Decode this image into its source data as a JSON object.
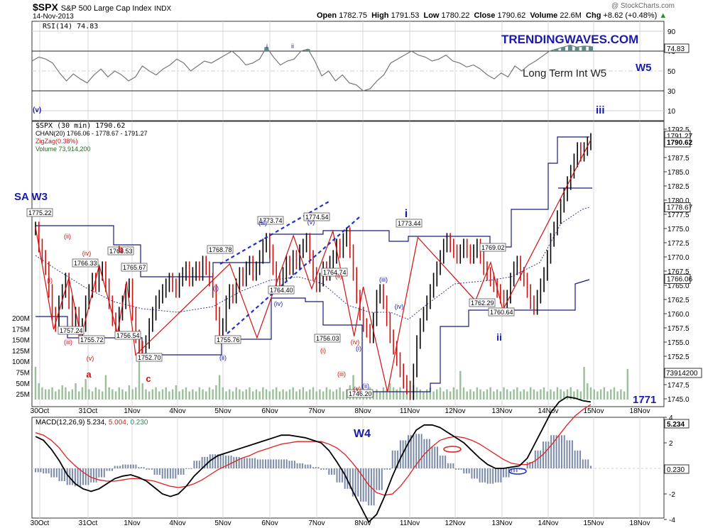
{
  "header": {
    "symbol": "$SPX",
    "name": "S&P 500 Large Cap Index",
    "exchange": "INDX",
    "date": "14-Nov-2013",
    "watermark": "@ StockCharts.com",
    "open_label": "Open",
    "open": "1782.75",
    "high_label": "High",
    "high": "1791.53",
    "low_label": "Low",
    "low": "1780.22",
    "close_label": "Close",
    "close": "1790.62",
    "volume_label": "Volume",
    "volume": "22.6M",
    "chg_label": "Chg",
    "chg": "+8.62 (+0.48%)",
    "up_icon": "triangle-up-icon"
  },
  "brand": {
    "text": "TRENDINGWAVES.COM",
    "color": "#1a1aa8"
  },
  "colors": {
    "wave_blue": "#1a1aa8",
    "wave_red": "#d01010",
    "price_up": "#000000",
    "price_down": "#cc1111",
    "channel": "#1a1a7a",
    "rsi_fill": "#5a8a8a",
    "volume": "#9abf9a",
    "macd_hist": "#7a8aa8"
  },
  "rsi": {
    "legend": "RSI(14) 74.83",
    "value_tag": "74.83",
    "ticks": [
      "90",
      "70",
      "50",
      "30",
      "10"
    ],
    "note_long_term": "Long Term Int W5",
    "label_w5": "W5",
    "label_v": "(v)",
    "label_iii": "iii",
    "small_i": "i",
    "small_ii": "ii",
    "values": [
      60,
      64,
      62,
      58,
      48,
      40,
      47,
      42,
      38,
      46,
      52,
      44,
      50,
      46,
      40,
      44,
      55,
      50,
      46,
      52,
      56,
      62,
      58,
      50,
      55,
      60,
      58,
      62,
      66,
      70,
      64,
      56,
      58,
      62,
      74,
      64,
      56,
      60,
      62,
      70,
      72,
      60,
      45,
      50,
      40,
      46,
      38,
      36,
      30,
      32,
      40,
      46,
      58,
      62,
      66,
      70,
      66,
      64,
      60,
      62,
      66,
      60,
      58,
      54,
      56,
      52,
      46,
      42,
      48,
      44,
      55,
      50,
      56,
      60,
      65,
      70,
      72,
      74,
      76,
      74,
      75,
      74.8
    ]
  },
  "price": {
    "legend": "$SPX (30 min) 1790.62",
    "legend_chan": "CHAN(20) 1766.06 - 1778.67 - 1791.27",
    "legend_zigzag": "ZigZag(0.38%)",
    "legend_volume": "Volume 73,914,200",
    "tag_close": "1790.62",
    "tag_upper": "1791.27",
    "tag_mid": "1778.67",
    "tag_lower": "1766.06",
    "tag_volume": "73914200",
    "y_ticks": [
      "1792.5",
      "1790.0",
      "1787.5",
      "1785.0",
      "1782.5",
      "1780.0",
      "1777.5",
      "1775.0",
      "1772.5",
      "1770.0",
      "1767.5",
      "1765.0",
      "1762.5",
      "1760.0",
      "1757.5",
      "1755.0",
      "1752.5",
      "1750.0",
      "1747.5",
      "1745.0"
    ],
    "vol_ticks": [
      "200M",
      "175M",
      "150M",
      "125M",
      "100M",
      "75M",
      "50M",
      "25M"
    ],
    "label_sa_w3": "SA W3",
    "label_1771": "1771",
    "zigzag": [
      [
        0,
        1775.22
      ],
      [
        6,
        1757.24
      ],
      [
        11,
        1766.33
      ],
      [
        15,
        1755.72
      ],
      [
        21,
        1768.53
      ],
      [
        27,
        1756.54
      ],
      [
        30,
        1765.67
      ],
      [
        33,
        1752.7
      ],
      [
        64,
        1768.78
      ],
      [
        73,
        1755.76
      ],
      [
        85,
        1773.74
      ],
      [
        91,
        1764.4
      ],
      [
        98,
        1774.54
      ],
      [
        105,
        1756.03
      ],
      [
        108,
        1764.74
      ],
      [
        116,
        1746.2
      ],
      [
        126,
        1773.44
      ],
      [
        145,
        1762.29
      ],
      [
        150,
        1769.02
      ],
      [
        154,
        1760.64
      ],
      [
        183,
        1790.62
      ]
    ],
    "bars": [
      1775,
      1772,
      1770,
      1768,
      1764,
      1760,
      1758,
      1762,
      1764,
      1766,
      1762,
      1758,
      1760,
      1756,
      1758,
      1762,
      1764,
      1766,
      1765,
      1767,
      1768,
      1765,
      1762,
      1759,
      1757,
      1760,
      1762,
      1764,
      1765,
      1760,
      1756,
      1754,
      1753,
      1755,
      1758,
      1760,
      1762,
      1763,
      1764,
      1765,
      1766,
      1765,
      1764,
      1766,
      1767,
      1768,
      1766,
      1767,
      1768,
      1767,
      1769,
      1768,
      1766,
      1764,
      1760,
      1757,
      1758,
      1762,
      1764,
      1763,
      1765,
      1767,
      1766,
      1768,
      1769,
      1767,
      1768,
      1770,
      1772,
      1773,
      1771,
      1768,
      1766,
      1765,
      1767,
      1769,
      1768,
      1770,
      1769,
      1771,
      1772,
      1773,
      1770,
      1767,
      1765,
      1766,
      1768,
      1767,
      1769,
      1770,
      1772,
      1771,
      1773,
      1774,
      1771,
      1767,
      1763,
      1760,
      1758,
      1757,
      1756,
      1759,
      1763,
      1764,
      1762,
      1759,
      1756,
      1754,
      1752,
      1750,
      1748,
      1747,
      1746,
      1750,
      1755,
      1758,
      1760,
      1762,
      1764,
      1766,
      1768,
      1770,
      1772,
      1773,
      1772,
      1771,
      1770,
      1771,
      1772,
      1771,
      1770,
      1771,
      1772,
      1770,
      1768,
      1767,
      1766,
      1765,
      1764,
      1763,
      1762,
      1763,
      1766,
      1768,
      1769,
      1767,
      1766,
      1764,
      1762,
      1761,
      1763,
      1765,
      1767,
      1770,
      1773,
      1775,
      1777,
      1779,
      1781,
      1783,
      1785,
      1787,
      1789,
      1788,
      1789,
      1790,
      1790.6
    ],
    "volume": [
      80,
      40,
      30,
      25,
      25,
      30,
      20,
      25,
      35,
      30,
      20,
      25,
      40,
      20,
      30,
      50,
      25,
      20,
      30,
      25,
      20,
      60,
      30,
      25,
      20,
      30,
      25,
      20,
      35,
      25,
      30,
      150,
      40,
      25,
      20,
      25,
      30,
      20,
      25,
      30,
      20,
      25,
      35,
      20,
      25,
      30,
      20,
      25,
      20,
      30,
      25,
      20,
      30,
      25,
      35,
      60,
      30,
      20,
      25,
      20,
      30,
      25,
      20,
      25,
      30,
      20,
      25,
      20,
      30,
      25,
      20,
      25,
      30,
      20,
      25,
      20,
      25,
      30,
      20,
      25,
      30,
      20,
      25,
      30,
      20,
      25,
      20,
      30,
      25,
      20,
      25,
      30,
      20,
      25,
      35,
      60,
      30,
      25,
      20,
      25,
      30,
      20,
      25,
      20,
      30,
      25,
      40,
      30,
      25,
      30,
      20,
      25,
      45,
      35,
      30,
      25,
      20,
      25,
      30,
      20,
      25,
      30,
      20,
      25,
      20,
      30,
      25,
      70,
      30,
      20,
      25,
      20,
      30,
      25,
      20,
      25,
      30,
      20,
      25,
      20,
      30,
      25,
      20,
      25,
      30,
      20,
      25,
      20,
      30,
      25,
      20,
      25,
      30,
      20,
      25,
      20,
      30,
      25,
      20,
      25,
      30,
      20,
      25,
      20,
      80,
      40,
      30,
      25,
      20,
      25,
      30,
      20,
      25,
      30,
      20,
      25,
      20,
      75
    ]
  },
  "wave_labels": [
    {
      "t": "i",
      "x": 572,
      "y": 306,
      "c": "blue",
      "s": 16,
      "b": true
    },
    {
      "t": "ii",
      "x": 703,
      "y": 480,
      "c": "blue",
      "s": 14,
      "b": true
    },
    {
      "t": "(i)",
      "x": 304,
      "y": 409,
      "c": "blue",
      "s": 9
    },
    {
      "t": "(ii)",
      "x": 314,
      "y": 507,
      "c": "blue",
      "s": 9
    },
    {
      "t": "(iii)",
      "x": 370,
      "y": 317,
      "c": "blue",
      "s": 9
    },
    {
      "t": "(iv)",
      "x": 392,
      "y": 431,
      "c": "blue",
      "s": 9
    },
    {
      "t": "(v)",
      "x": 438,
      "y": 316,
      "c": "blue",
      "s": 9
    },
    {
      "t": "(iii)",
      "x": 540,
      "y": 397,
      "c": "blue",
      "s": 9
    },
    {
      "t": "(iv)",
      "x": 562,
      "y": 435,
      "c": "blue",
      "s": 9
    },
    {
      "t": "(i)",
      "x": 505,
      "y": 494,
      "c": "blue",
      "s": 9
    },
    {
      "t": "(ii)",
      "x": 515,
      "y": 547,
      "c": "blue",
      "s": 9
    },
    {
      "t": "(ii)",
      "x": 95,
      "y": 336,
      "c": "red",
      "s": 9
    },
    {
      "t": "(iv)",
      "x": 122,
      "y": 360,
      "c": "red",
      "s": 9
    },
    {
      "t": "(i)",
      "x": 70,
      "y": 398,
      "c": "red",
      "s": 9
    },
    {
      "t": "(iii)",
      "x": 96,
      "y": 485,
      "c": "red",
      "s": 9
    },
    {
      "t": "(v)",
      "x": 127,
      "y": 508,
      "c": "red",
      "s": 9
    },
    {
      "t": "a",
      "x": 125,
      "y": 532,
      "c": "red",
      "s": 13,
      "b": true
    },
    {
      "t": "b",
      "x": 170,
      "y": 356,
      "c": "red",
      "s": 13,
      "b": true
    },
    {
      "t": "c",
      "x": 209,
      "y": 538,
      "c": "red",
      "s": 13,
      "b": true
    },
    {
      "t": "(ii)",
      "x": 477,
      "y": 392,
      "c": "red",
      "s": 9
    },
    {
      "t": "(i)",
      "x": 455,
      "y": 497,
      "c": "red",
      "s": 9
    },
    {
      "t": "(iii)",
      "x": 481,
      "y": 530,
      "c": "red",
      "s": 9
    },
    {
      "t": "(iv)",
      "x": 500,
      "y": 485,
      "c": "red",
      "s": 9
    },
    {
      "t": "(v)",
      "x": 503,
      "y": 551,
      "c": "red",
      "s": 9
    }
  ],
  "price_boxes": [
    {
      "t": "1775.22",
      "x": 38,
      "y": 303
    },
    {
      "t": "1766.33",
      "x": 102,
      "y": 374
    },
    {
      "t": "1768.53",
      "x": 152,
      "y": 357
    },
    {
      "t": "1765.67",
      "x": 171,
      "y": 380
    },
    {
      "t": "1757.24",
      "x": 82,
      "y": 469
    },
    {
      "t": "1755.72",
      "x": 111,
      "y": 482
    },
    {
      "t": "1756.54",
      "x": 162,
      "y": 476
    },
    {
      "t": "1752.70",
      "x": 192,
      "y": 507
    },
    {
      "t": "1768.78",
      "x": 292,
      "y": 355
    },
    {
      "t": "1755.76",
      "x": 303,
      "y": 482
    },
    {
      "t": "1773.74",
      "x": 363,
      "y": 314
    },
    {
      "t": "1764.40",
      "x": 378,
      "y": 412
    },
    {
      "t": "1774.54",
      "x": 428,
      "y": 309
    },
    {
      "t": "1764.74",
      "x": 453,
      "y": 387
    },
    {
      "t": "1756.03",
      "x": 443,
      "y": 480
    },
    {
      "t": "1746.20",
      "x": 489,
      "y": 558
    },
    {
      "t": "1773.44",
      "x": 558,
      "y": 318
    },
    {
      "t": "1769.02",
      "x": 676,
      "y": 352
    },
    {
      "t": "1762.29",
      "x": 661,
      "y": 430
    },
    {
      "t": "1760.64",
      "x": 688,
      "y": 443
    }
  ],
  "x_axis": {
    "labels": [
      "30Oct",
      "31Oct",
      "1Nov",
      "4Nov",
      "5Nov",
      "6Nov",
      "7Nov",
      "8Nov",
      "11Nov",
      "12Nov",
      "13Nov",
      "14Nov",
      "15Nov",
      "18Nov"
    ]
  },
  "macd": {
    "legend_name": "MACD(12,26,9)",
    "legend_macd": "5.234",
    "legend_signal": "5.004",
    "legend_hist": "0.230",
    "tag_macd": "5.234",
    "tag_hist": "0.230",
    "ticks": [
      "4",
      "2",
      "0",
      "-2",
      "-4"
    ],
    "label_w4": "W4",
    "macd_line": [
      2.5,
      2.2,
      1.5,
      0.6,
      -0.5,
      -1.2,
      -1.6,
      -1.8,
      -1.6,
      -1.2,
      -0.8,
      -0.6,
      -0.5,
      -0.7,
      -1.0,
      -1.5,
      -2.0,
      -2.2,
      -2.0,
      -1.4,
      -0.6,
      0.0,
      0.6,
      1.0,
      1.2,
      1.4,
      1.6,
      1.8,
      2.0,
      2.2,
      2.4,
      2.6,
      2.6,
      2.5,
      2.4,
      2.2,
      2.0,
      1.4,
      0.5,
      -0.5,
      -1.8,
      -3.0,
      -4.2,
      -3.6,
      -2.2,
      -0.6,
      0.8,
      2.0,
      3.0,
      3.4,
      3.4,
      3.2,
      2.8,
      2.4,
      2.0,
      1.4,
      0.8,
      0.3,
      0.0,
      0.0,
      0.1,
      0.2,
      0.8,
      2.0,
      3.2,
      4.4,
      5.2,
      5.6,
      5.5,
      5.3,
      5.2
    ],
    "signal_line": [
      2.8,
      2.6,
      2.2,
      1.6,
      0.8,
      0.2,
      -0.3,
      -0.7,
      -0.9,
      -1.0,
      -1.0,
      -0.9,
      -0.8,
      -0.8,
      -0.9,
      -1.0,
      -1.2,
      -1.4,
      -1.5,
      -1.4,
      -1.2,
      -0.9,
      -0.5,
      -0.1,
      0.2,
      0.5,
      0.8,
      1.0,
      1.3,
      1.5,
      1.7,
      1.9,
      2.0,
      2.1,
      2.1,
      2.1,
      2.1,
      1.9,
      1.6,
      1.1,
      0.4,
      -0.4,
      -1.3,
      -1.9,
      -2.1,
      -2.0,
      -1.4,
      -0.6,
      0.3,
      1.1,
      1.7,
      2.2,
      2.4,
      2.5,
      2.4,
      2.2,
      1.9,
      1.5,
      1.1,
      0.7,
      0.4,
      0.3,
      0.3,
      0.6,
      1.1,
      1.8,
      2.6,
      3.4,
      4.1,
      4.6,
      5.0
    ]
  }
}
